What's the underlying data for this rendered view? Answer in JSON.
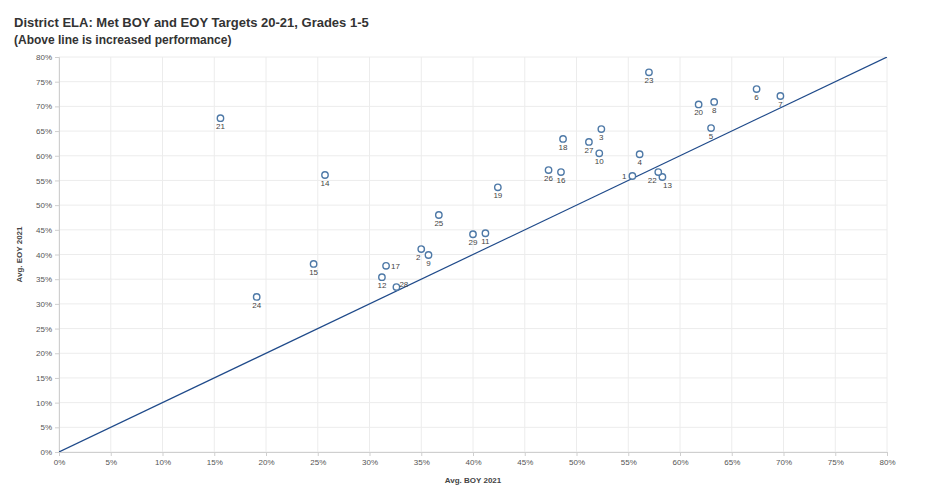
{
  "chart_data": {
    "type": "scatter",
    "title": "District ELA: Met BOY and EOY Targets 20-21, Grades 1-5",
    "subtitle": "(Above line is increased performance)",
    "x_label": "Avg. BOY 2021",
    "y_label": "Avg. EOY 2021",
    "point_labels": [
      "1",
      "2",
      "3",
      "4",
      "5",
      "6",
      "7",
      "8",
      "9",
      "10",
      "11",
      "12",
      "13",
      "14",
      "15",
      "16",
      "17",
      "18",
      "19",
      "20",
      "21",
      "22",
      "23",
      "24",
      "25",
      "26",
      "27",
      "28",
      "29"
    ],
    "x": [
      55.4,
      35.0,
      52.4,
      56.1,
      63.0,
      67.4,
      69.7,
      63.3,
      35.7,
      52.2,
      41.2,
      31.2,
      58.3,
      25.7,
      24.6,
      48.5,
      31.6,
      48.7,
      42.4,
      61.8,
      15.6,
      57.9,
      57.0,
      19.1,
      36.7,
      47.3,
      51.2,
      32.6,
      40.0
    ],
    "values": [
      55.9,
      41.1,
      65.4,
      60.3,
      65.6,
      73.5,
      72.1,
      70.9,
      39.9,
      60.5,
      44.3,
      35.4,
      55.7,
      56.1,
      38.1,
      56.7,
      37.7,
      63.4,
      53.6,
      70.4,
      67.6,
      56.7,
      76.9,
      31.4,
      48.0,
      57.1,
      62.8,
      33.4,
      44.1
    ],
    "reference_line": {
      "x": [
        0,
        80
      ],
      "y": [
        0,
        80
      ]
    },
    "color": "#4e79a7",
    "marker": "hollow-circle",
    "grid": true,
    "xlim": [
      0,
      80
    ],
    "ylim": [
      0,
      80
    ],
    "xticks": [
      {
        "value": 0,
        "label": "0%"
      },
      {
        "value": 5,
        "label": "5%"
      },
      {
        "value": 10,
        "label": "10%"
      },
      {
        "value": 15,
        "label": "15%"
      },
      {
        "value": 20,
        "label": "20%"
      },
      {
        "value": 25,
        "label": "25%"
      },
      {
        "value": 30,
        "label": "30%"
      },
      {
        "value": 35,
        "label": "35%"
      },
      {
        "value": 40,
        "label": "40%"
      },
      {
        "value": 45,
        "label": "45%"
      },
      {
        "value": 50,
        "label": "50%"
      },
      {
        "value": 55,
        "label": "55%"
      },
      {
        "value": 60,
        "label": "60%"
      },
      {
        "value": 65,
        "label": "65%"
      },
      {
        "value": 70,
        "label": "70%"
      },
      {
        "value": 75,
        "label": "75%"
      },
      {
        "value": 80,
        "label": "80%"
      }
    ],
    "yticks": [
      {
        "value": 0,
        "label": "0%"
      },
      {
        "value": 5,
        "label": "5%"
      },
      {
        "value": 10,
        "label": "10%"
      },
      {
        "value": 15,
        "label": "15%"
      },
      {
        "value": 20,
        "label": "20%"
      },
      {
        "value": 25,
        "label": "25%"
      },
      {
        "value": 30,
        "label": "30%"
      },
      {
        "value": 35,
        "label": "35%"
      },
      {
        "value": 40,
        "label": "40%"
      },
      {
        "value": 45,
        "label": "45%"
      },
      {
        "value": 50,
        "label": "50%"
      },
      {
        "value": 55,
        "label": "55%"
      },
      {
        "value": 60,
        "label": "60%"
      },
      {
        "value": 65,
        "label": "65%"
      },
      {
        "value": 70,
        "label": "70%"
      },
      {
        "value": 75,
        "label": "75%"
      },
      {
        "value": 80,
        "label": "80%"
      }
    ]
  }
}
